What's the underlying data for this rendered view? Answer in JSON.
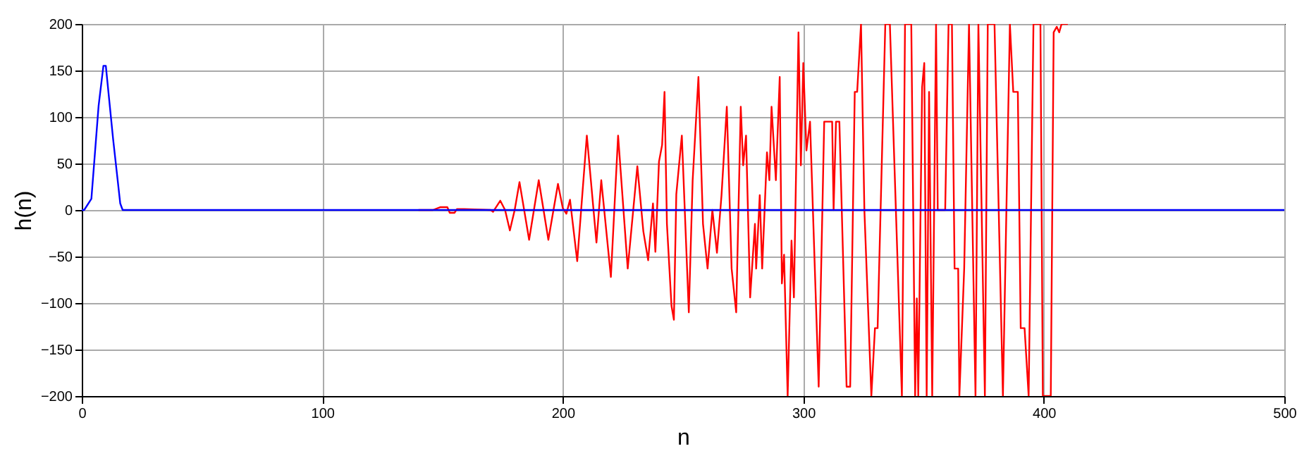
{
  "chart_data": {
    "type": "line",
    "xlabel": "n",
    "ylabel": "h(n)",
    "xlim": [
      0,
      500
    ],
    "ylim": [
      -200,
      200
    ],
    "xticks": [
      0,
      100,
      200,
      300,
      400,
      500
    ],
    "yticks": [
      -200,
      -150,
      -100,
      -50,
      0,
      50,
      100,
      150,
      200
    ],
    "grid": true,
    "legend": false,
    "marker": "none",
    "line_style": "solid",
    "series": [
      {
        "color": "#ff0000",
        "x": [
          140,
          146,
          149,
          152,
          153,
          155,
          156,
          159,
          170,
          171,
          174,
          176,
          178,
          180,
          182,
          186,
          190,
          194,
          198,
          200,
          201.5,
          203,
          206,
          210,
          214,
          216,
          220,
          223,
          227,
          231,
          233.5,
          235.5,
          237.5,
          238.5,
          240,
          241.3,
          242.3,
          243.3,
          245.2,
          246.2,
          247.2,
          249.5,
          252.4,
          254,
          256.4,
          258.3,
          260.2,
          262.2,
          264.1,
          266,
          268.2,
          270.2,
          272.1,
          274,
          275,
          276.2,
          277.9,
          279.9,
          280.4,
          281.9,
          282.9,
          284.9,
          285.9,
          286.8,
          288.6,
          290.2,
          291.1,
          292,
          293.5,
          295.1,
          296.1,
          298,
          299,
          300,
          301.3,
          302.8,
          306.4,
          308.7,
          312,
          312.6,
          313.6,
          315,
          318,
          319.5,
          321.4,
          322.4,
          324,
          325.4,
          328.3,
          329.8,
          330.9,
          334.1,
          336,
          341,
          342.3,
          344.9,
          346.5,
          347.2,
          347.8,
          349.4,
          350.3,
          351.3,
          352.3,
          353.6,
          355.2,
          355.9,
          359,
          360.4,
          361.8,
          362.9,
          364.4,
          364.9,
          366.9,
          368.9,
          371.6,
          372.8,
          375.5,
          376.7,
          379.5,
          383,
          385.9,
          387.3,
          389.2,
          390.4,
          392,
          393.7,
          395.7,
          398.6,
          399.6,
          402.9,
          404.1,
          405.4,
          406.4,
          407.4,
          410
        ],
        "values": [
          0,
          0,
          3,
          3,
          -3,
          -3,
          1,
          1,
          0,
          -2,
          10,
          0,
          -22,
          0,
          30,
          -32,
          32,
          -32,
          28,
          2,
          -4,
          11,
          -55,
          80,
          -35,
          32,
          -72,
          80,
          -63,
          47,
          -23,
          -54,
          7,
          -45,
          52,
          70,
          127,
          -15,
          -103,
          -118,
          17,
          80,
          -110,
          32,
          143,
          -15,
          -63,
          0,
          -46,
          16,
          111,
          -63,
          -110,
          111,
          48,
          80,
          -94,
          -15,
          -63,
          16,
          -63,
          62,
          32,
          111,
          32,
          143,
          -79,
          -48,
          -200,
          -33,
          -94,
          191,
          48,
          158,
          64,
          95,
          -190,
          95,
          95,
          0,
          95,
          95,
          -190,
          -190,
          127,
          127,
          200,
          0,
          -200,
          -127,
          -127,
          200,
          200,
          -200,
          200,
          200,
          -200,
          -95,
          -200,
          132,
          158,
          -200,
          127,
          -200,
          200,
          0,
          0,
          200,
          200,
          -63,
          -63,
          -200,
          -63,
          200,
          -200,
          200,
          -200,
          200,
          200,
          -200,
          200,
          127,
          127,
          -127,
          -127,
          -200,
          200,
          200,
          -200,
          -200,
          191,
          197,
          191,
          200,
          200
        ]
      },
      {
        "color": "#0000ff",
        "x": [
          0,
          1,
          4,
          7,
          9,
          10,
          13,
          16,
          17,
          500
        ],
        "values": [
          0,
          0,
          12,
          112,
          155,
          155,
          77,
          7,
          0,
          0
        ]
      }
    ]
  }
}
